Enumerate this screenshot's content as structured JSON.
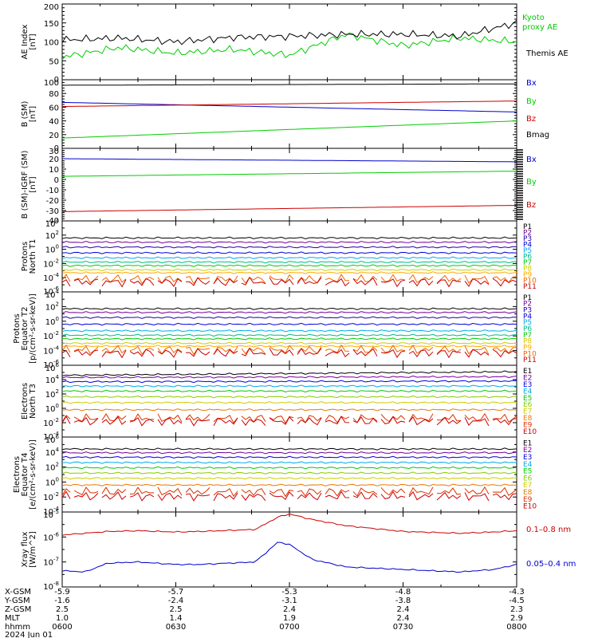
{
  "footer": {
    "date": "2024 Jun 01",
    "rows": [
      {
        "label": "X-GSM",
        "values": [
          "-5.9",
          "-5.7",
          "-5.3",
          "-4.8",
          "-4.3"
        ]
      },
      {
        "label": "Y-GSM",
        "values": [
          "-1.6",
          "-2.4",
          "-3.1",
          "-3.8",
          "-4.5"
        ]
      },
      {
        "label": "Z-GSM",
        "values": [
          "2.5",
          "2.5",
          "2.4",
          "2.4",
          "2.3"
        ]
      },
      {
        "label": "MLT",
        "values": [
          "1.0",
          "1.4",
          "1.9",
          "2.4",
          "2.9"
        ]
      },
      {
        "label": "hhmm",
        "values": [
          "0600",
          "0630",
          "0700",
          "0730",
          "0800"
        ]
      }
    ]
  },
  "chart_data": [
    {
      "id": "ae",
      "type": "line",
      "ylabel_lines": [
        "AE Index",
        "[nT]"
      ],
      "scale": "linear",
      "ylim": [
        0,
        200
      ],
      "ticks": [
        0,
        50,
        100,
        150,
        200
      ],
      "tick_labels": [
        "0",
        "50",
        "100",
        "150",
        "200"
      ],
      "x_hours": [
        6.0,
        6.25,
        6.5,
        6.75,
        7.0,
        7.25,
        7.5,
        7.75,
        8.0
      ],
      "series": [
        {
          "name": "Kyoto proxy AE",
          "color": "#00cc00",
          "values": [
            60,
            85,
            70,
            80,
            65,
            120,
            90,
            110,
            100
          ]
        },
        {
          "name": "Themis AE",
          "color": "#000000",
          "values": [
            105,
            110,
            100,
            112,
            115,
            120,
            120,
            115,
            150
          ]
        }
      ],
      "legend": [
        {
          "text": "Kyoto",
          "color": "#00cc00"
        },
        {
          "text": "proxy AE",
          "color": "#00cc00"
        },
        {
          "text": "Themis AE",
          "color": "#000000"
        }
      ]
    },
    {
      "id": "bsm",
      "type": "line",
      "ylabel_lines": [
        "B (SM)",
        "[nT]"
      ],
      "scale": "linear",
      "ylim": [
        0,
        100
      ],
      "ticks": [
        0,
        20,
        40,
        60,
        80,
        100
      ],
      "tick_labels": [
        "0",
        "20",
        "40",
        "60",
        "80",
        "100"
      ],
      "x_hours": [
        6.0,
        8.0
      ],
      "series": [
        {
          "name": "Bx",
          "color": "#0000cc",
          "values": [
            67,
            53
          ]
        },
        {
          "name": "By",
          "color": "#00cc00",
          "values": [
            15,
            40
          ]
        },
        {
          "name": "Bz",
          "color": "#cc0000",
          "values": [
            61,
            69
          ]
        },
        {
          "name": "Bmag",
          "color": "#000000",
          "values": [
            92,
            94
          ]
        }
      ],
      "legend": [
        {
          "text": "Bx",
          "color": "#0000cc"
        },
        {
          "text": "By",
          "color": "#00cc00"
        },
        {
          "text": "Bz",
          "color": "#cc0000"
        },
        {
          "text": "Bmag",
          "color": "#000000"
        }
      ]
    },
    {
      "id": "bigrf",
      "type": "line",
      "ylabel_lines": [
        "B (SM)-IGRF (SM)",
        "[nT]"
      ],
      "scale": "linear",
      "ylim": [
        -40,
        30
      ],
      "ticks": [
        -40,
        -30,
        -20,
        -10,
        0,
        10,
        20,
        30
      ],
      "tick_labels": [
        "-40",
        "-30",
        "-20",
        "-10",
        "0",
        "10",
        "20",
        "30"
      ],
      "x_hours": [
        6.0,
        8.0
      ],
      "series": [
        {
          "name": "Bx",
          "color": "#0000cc",
          "values": [
            20,
            17
          ]
        },
        {
          "name": "By",
          "color": "#00cc00",
          "values": [
            3,
            8
          ]
        },
        {
          "name": "Bz",
          "color": "#cc0000",
          "values": [
            -31,
            -25
          ]
        }
      ],
      "legend": [
        {
          "text": "Bx",
          "color": "#0000cc"
        },
        {
          "text": "By",
          "color": "#00cc00"
        },
        {
          "text": "Bz",
          "color": "#cc0000"
        }
      ]
    },
    {
      "id": "pnt1",
      "type": "line",
      "ylabel_lines": [
        "Protons",
        "North T1"
      ],
      "scale": "log",
      "ylim": [
        -6,
        4
      ],
      "ticks": [
        -6,
        -4,
        -2,
        0,
        2,
        4
      ],
      "tick_labels": [
        "10^-6",
        "10^-4",
        "10^-2",
        "10^0",
        "10^2",
        "10^4"
      ],
      "x_hours": [
        6.0,
        8.0
      ],
      "series": [
        {
          "name": "P1",
          "color": "#000000",
          "values": [
            1.6,
            1.6
          ]
        },
        {
          "name": "P2",
          "color": "#770099",
          "values": [
            1.0,
            1.0
          ]
        },
        {
          "name": "P3",
          "color": "#2200aa",
          "values": [
            0.3,
            0.3
          ]
        },
        {
          "name": "P4",
          "color": "#0000dd",
          "values": [
            -0.5,
            -0.5
          ]
        },
        {
          "name": "P5",
          "color": "#00aaee",
          "values": [
            -1.2,
            -1.2
          ]
        },
        {
          "name": "P6",
          "color": "#00bb88",
          "values": [
            -1.8,
            -1.8
          ]
        },
        {
          "name": "P7",
          "color": "#00cc00",
          "values": [
            -2.3,
            -2.3
          ]
        },
        {
          "name": "P8",
          "color": "#cccc00",
          "values": [
            -2.9,
            -2.9
          ]
        },
        {
          "name": "P9",
          "color": "#ffaa00",
          "values": [
            -3.3,
            -3.3
          ]
        },
        {
          "name": "P10",
          "color": "#ee6600",
          "values": [
            -4.2,
            -4.2
          ]
        },
        {
          "name": "P11",
          "color": "#cc0000",
          "values": [
            -4.6,
            -4.6
          ]
        }
      ],
      "legend": [
        {
          "text": "P1",
          "color": "#000000"
        },
        {
          "text": "P2",
          "color": "#770099"
        },
        {
          "text": "P3",
          "color": "#2200aa"
        },
        {
          "text": "P4",
          "color": "#0000dd"
        },
        {
          "text": "P5",
          "color": "#00aaee"
        },
        {
          "text": "P6",
          "color": "#00bb88"
        },
        {
          "text": "P7",
          "color": "#00cc00"
        },
        {
          "text": "P8",
          "color": "#cccc00"
        },
        {
          "text": "P9",
          "color": "#ffaa00"
        },
        {
          "text": "P10",
          "color": "#ee6600"
        },
        {
          "text": "P11",
          "color": "#cc0000"
        }
      ]
    },
    {
      "id": "pet2",
      "type": "line",
      "ylabel_lines": [
        "Protons",
        "Equator T2",
        "[p/(cm²-s-sr-keV)]"
      ],
      "scale": "log",
      "ylim": [
        -6,
        4
      ],
      "ticks": [
        -6,
        -4,
        -2,
        0,
        2,
        4
      ],
      "tick_labels": [
        "10^-6",
        "10^-4",
        "10^-2",
        "10^0",
        "10^2",
        "10^4"
      ],
      "x_hours": [
        6.0,
        8.0
      ],
      "series": [
        {
          "name": "P1",
          "color": "#000000",
          "values": [
            1.7,
            1.7
          ]
        },
        {
          "name": "P2",
          "color": "#770099",
          "values": [
            1.2,
            1.2
          ]
        },
        {
          "name": "P3",
          "color": "#2200aa",
          "values": [
            0.5,
            0.5
          ]
        },
        {
          "name": "P4",
          "color": "#0000dd",
          "values": [
            -0.4,
            -0.4
          ]
        },
        {
          "name": "P5",
          "color": "#00aaee",
          "values": [
            -1.3,
            -1.3
          ]
        },
        {
          "name": "P6",
          "color": "#00bb88",
          "values": [
            -1.9,
            -1.9
          ]
        },
        {
          "name": "P7",
          "color": "#00cc00",
          "values": [
            -2.4,
            -2.4
          ]
        },
        {
          "name": "P8",
          "color": "#cccc00",
          "values": [
            -3.0,
            -3.0
          ]
        },
        {
          "name": "P9",
          "color": "#ffaa00",
          "values": [
            -3.4,
            -3.4
          ]
        },
        {
          "name": "P10",
          "color": "#ee6600",
          "values": [
            -3.9,
            -3.9
          ]
        },
        {
          "name": "P11",
          "color": "#cc0000",
          "values": [
            -4.3,
            -4.3
          ]
        }
      ],
      "legend": [
        {
          "text": "P1",
          "color": "#000000"
        },
        {
          "text": "P2",
          "color": "#770099"
        },
        {
          "text": "P3",
          "color": "#2200aa"
        },
        {
          "text": "P4",
          "color": "#0000dd"
        },
        {
          "text": "P5",
          "color": "#00aaee"
        },
        {
          "text": "P6",
          "color": "#00bb88"
        },
        {
          "text": "P7",
          "color": "#00cc00"
        },
        {
          "text": "P8",
          "color": "#cccc00"
        },
        {
          "text": "P9",
          "color": "#ffaa00"
        },
        {
          "text": "P10",
          "color": "#ee6600"
        },
        {
          "text": "P11",
          "color": "#cc0000"
        }
      ]
    },
    {
      "id": "ent3",
      "type": "line",
      "ylabel_lines": [
        "Electrons",
        "North T3"
      ],
      "scale": "log",
      "ylim": [
        -4,
        6
      ],
      "ticks": [
        -4,
        -2,
        0,
        2,
        4,
        6
      ],
      "tick_labels": [
        "10^-4",
        "10^-2",
        "10^0",
        "10^2",
        "10^4",
        "10^6"
      ],
      "x_hours": [
        6.0,
        8.0
      ],
      "series": [
        {
          "name": "E1",
          "color": "#000000",
          "values": [
            4.6,
            5.1
          ]
        },
        {
          "name": "E2",
          "color": "#770099",
          "values": [
            4.3,
            4.4
          ]
        },
        {
          "name": "E3",
          "color": "#0000dd",
          "values": [
            3.7,
            3.8
          ]
        },
        {
          "name": "E4",
          "color": "#00aaee",
          "values": [
            3.1,
            3.1
          ]
        },
        {
          "name": "E5",
          "color": "#00cc00",
          "values": [
            2.4,
            2.4
          ]
        },
        {
          "name": "E6",
          "color": "#88cc00",
          "values": [
            1.6,
            1.6
          ]
        },
        {
          "name": "E7",
          "color": "#cccc00",
          "values": [
            0.8,
            0.8
          ]
        },
        {
          "name": "E8",
          "color": "#ee7700",
          "values": [
            -0.2,
            -0.2
          ]
        },
        {
          "name": "E9",
          "color": "#dd3300",
          "values": [
            -1.4,
            -1.4
          ]
        },
        {
          "name": "E10",
          "color": "#cc0000",
          "values": [
            -1.8,
            -1.8
          ]
        }
      ],
      "legend": [
        {
          "text": "E1",
          "color": "#000000"
        },
        {
          "text": "E2",
          "color": "#770099"
        },
        {
          "text": "E3",
          "color": "#0000dd"
        },
        {
          "text": "E4",
          "color": "#00aaee"
        },
        {
          "text": "E5",
          "color": "#00cc00"
        },
        {
          "text": "E6",
          "color": "#88cc00"
        },
        {
          "text": "E7",
          "color": "#cccc00"
        },
        {
          "text": "E8",
          "color": "#ee7700"
        },
        {
          "text": "E9",
          "color": "#dd3300"
        },
        {
          "text": "E10",
          "color": "#cc0000"
        }
      ]
    },
    {
      "id": "eet4",
      "type": "line",
      "ylabel_lines": [
        "Electrons",
        "Equator T4",
        "[e/(cm²-s-sr-keV)]"
      ],
      "scale": "log",
      "ylim": [
        -4,
        6
      ],
      "ticks": [
        -4,
        -2,
        0,
        2,
        4,
        6
      ],
      "tick_labels": [
        "10^-4",
        "10^-2",
        "10^0",
        "10^2",
        "10^4",
        "10^6"
      ],
      "x_hours": [
        6.0,
        8.0
      ],
      "series": [
        {
          "name": "E1",
          "color": "#000000",
          "values": [
            4.4,
            4.4
          ]
        },
        {
          "name": "E2",
          "color": "#770099",
          "values": [
            3.9,
            3.9
          ]
        },
        {
          "name": "E3",
          "color": "#0000dd",
          "values": [
            3.3,
            3.3
          ]
        },
        {
          "name": "E4",
          "color": "#00aaee",
          "values": [
            2.6,
            2.6
          ]
        },
        {
          "name": "E5",
          "color": "#00cc00",
          "values": [
            1.9,
            1.9
          ]
        },
        {
          "name": "E6",
          "color": "#88cc00",
          "values": [
            1.2,
            1.2
          ]
        },
        {
          "name": "E7",
          "color": "#cccc00",
          "values": [
            0.5,
            0.5
          ]
        },
        {
          "name": "E8",
          "color": "#ee7700",
          "values": [
            -0.4,
            -0.4
          ]
        },
        {
          "name": "E9",
          "color": "#dd3300",
          "values": [
            -1.3,
            -1.3
          ]
        },
        {
          "name": "E10",
          "color": "#cc0000",
          "values": [
            -1.9,
            -1.9
          ]
        }
      ],
      "legend": [
        {
          "text": "E1",
          "color": "#000000"
        },
        {
          "text": "E2",
          "color": "#770099"
        },
        {
          "text": "E3",
          "color": "#0000dd"
        },
        {
          "text": "E4",
          "color": "#00aaee"
        },
        {
          "text": "E5",
          "color": "#00cc00"
        },
        {
          "text": "E6",
          "color": "#88cc00"
        },
        {
          "text": "E7",
          "color": "#cccc00"
        },
        {
          "text": "E8",
          "color": "#ee7700"
        },
        {
          "text": "E9",
          "color": "#dd3300"
        },
        {
          "text": "E10",
          "color": "#cc0000"
        }
      ]
    },
    {
      "id": "xray",
      "type": "line",
      "ylabel_lines": [
        "Xray flux",
        "[W/m^2]"
      ],
      "scale": "log",
      "ylim": [
        -8,
        -5
      ],
      "ticks": [
        -8,
        -7,
        -6,
        -5
      ],
      "tick_labels": [
        "10^-8",
        "10^-7",
        "10^-6",
        "10^-5"
      ],
      "x_hours": [
        6.0,
        6.1,
        6.2,
        6.33,
        6.5,
        6.6,
        6.85,
        6.95,
        7.0,
        7.1,
        7.25,
        7.5,
        7.75,
        7.9,
        8.0
      ],
      "series": [
        {
          "name": "0.1-0.8 nm",
          "color": "#cc0000",
          "values": [
            -5.92,
            -5.85,
            -5.78,
            -5.75,
            -5.8,
            -5.78,
            -5.7,
            -5.2,
            -5.08,
            -5.3,
            -5.55,
            -5.78,
            -5.85,
            -5.8,
            -5.75
          ]
        },
        {
          "name": "0.05-0.4 nm",
          "color": "#0000cc",
          "values": [
            -7.35,
            -7.4,
            -7.05,
            -7.0,
            -7.1,
            -7.1,
            -7.0,
            -6.2,
            -6.3,
            -6.9,
            -7.2,
            -7.3,
            -7.4,
            -7.3,
            -7.1
          ]
        }
      ],
      "legend": [
        {
          "text": "0.1–0.8 nm",
          "color": "#cc0000"
        },
        {
          "text": "0.05–0.4 nm",
          "color": "#0000cc"
        }
      ]
    }
  ]
}
